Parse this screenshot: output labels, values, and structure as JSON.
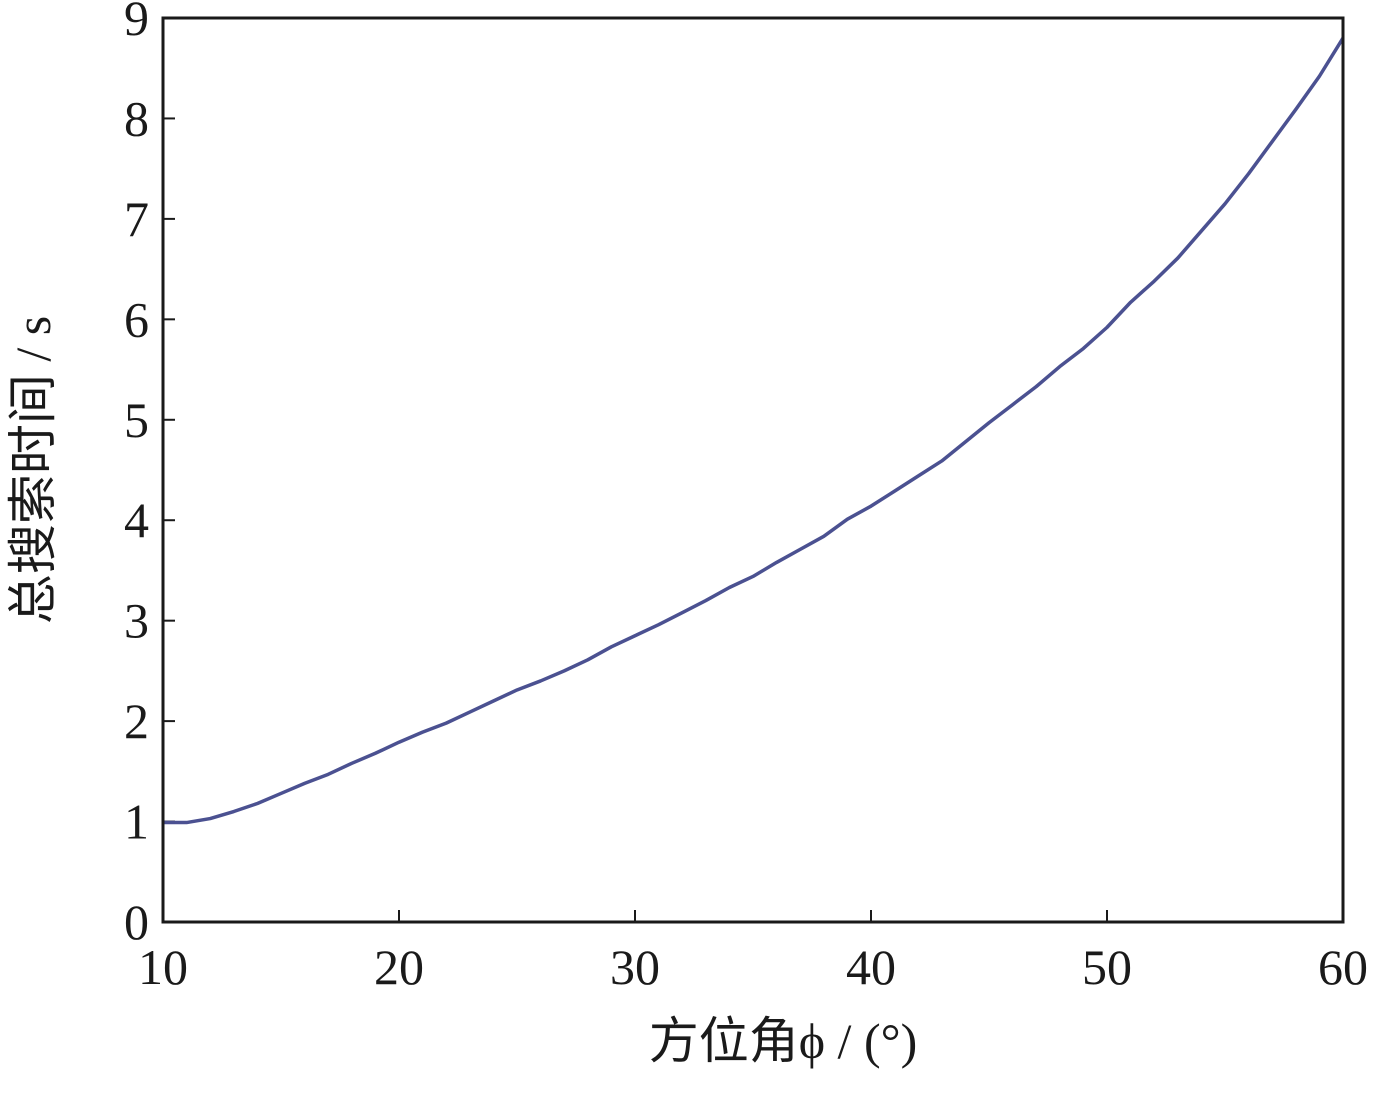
{
  "chart_data": {
    "type": "line",
    "x_label": "方位角ϕ / (°)",
    "y_label": "总搜索时间 / s",
    "x": [
      10,
      11,
      12,
      13,
      14,
      15,
      16,
      17,
      18,
      19,
      20,
      21,
      22,
      23,
      24,
      25,
      26,
      27,
      28,
      29,
      30,
      31,
      32,
      33,
      34,
      35,
      36,
      37,
      38,
      39,
      40,
      41,
      42,
      43,
      44,
      45,
      46,
      47,
      48,
      49,
      50,
      51,
      52,
      53,
      54,
      55,
      56,
      57,
      58,
      59,
      60
    ],
    "values": [
      0.99,
      0.99,
      1.03,
      1.1,
      1.18,
      1.28,
      1.38,
      1.47,
      1.58,
      1.68,
      1.79,
      1.89,
      1.98,
      2.09,
      2.2,
      2.31,
      2.4,
      2.5,
      2.61,
      2.74,
      2.85,
      2.96,
      3.08,
      3.2,
      3.33,
      3.44,
      3.58,
      3.71,
      3.84,
      4.01,
      4.14,
      4.29,
      4.44,
      4.59,
      4.78,
      4.97,
      5.15,
      5.33,
      5.53,
      5.71,
      5.92,
      6.17,
      6.38,
      6.61,
      6.88,
      7.15,
      7.45,
      7.77,
      8.09,
      8.42,
      8.8
    ],
    "color": "#4b5191",
    "xlim": [
      10,
      60
    ],
    "ylim": [
      0,
      9
    ],
    "xticks": [
      10,
      20,
      30,
      40,
      50,
      60
    ],
    "yticks": [
      0,
      1,
      2,
      3,
      4,
      5,
      6,
      7,
      8,
      9
    ],
    "grid": false
  }
}
